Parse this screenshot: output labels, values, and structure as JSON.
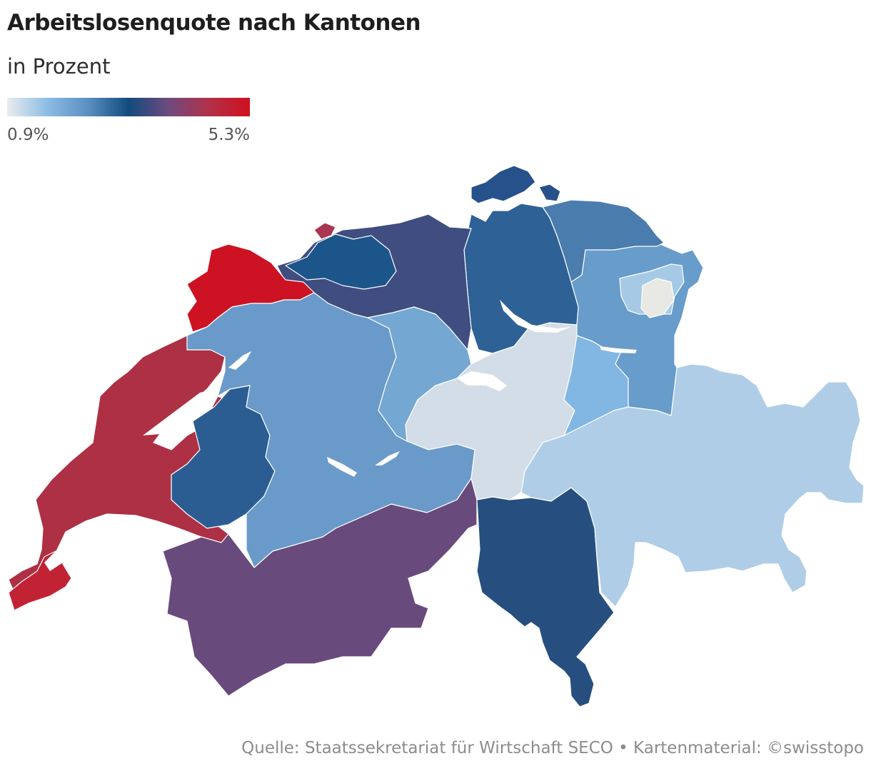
{
  "title": "Arbeitslosenquote nach Kantonen",
  "subtitle": "in Prozent",
  "legend": {
    "min_label": "0.9%",
    "max_label": "5.3%",
    "min_value": 0.9,
    "max_value": 5.3,
    "colors": [
      "#e9ecee",
      "#8cbce4",
      "#5b8fc2",
      "#114b7d",
      "#6f4a7e",
      "#b23048",
      "#d0101f"
    ]
  },
  "source": "Quelle: Staatssekretariat für Wirtschaft SECO • Kartenmaterial: ©swisstopo",
  "map": {
    "regions": [
      {
        "name": "region-jura",
        "color": "#cc1223"
      },
      {
        "name": "region-neuchatel-vaud-geneva-north",
        "color": "#ad3044"
      },
      {
        "name": "region-geneva",
        "color": "#c12335"
      },
      {
        "name": "region-fribourg",
        "color": "#2b5d92"
      },
      {
        "name": "region-bern",
        "color": "#699ac9"
      },
      {
        "name": "region-valais",
        "color": "#694a7c"
      },
      {
        "name": "region-solothurn-aargau",
        "color": "#3f4d80"
      },
      {
        "name": "region-basel",
        "color": "#1c5589"
      },
      {
        "name": "region-basel-city",
        "color": "#a83650"
      },
      {
        "name": "region-schaffhausen",
        "color": "#27518a"
      },
      {
        "name": "region-zurich",
        "color": "#2e6196"
      },
      {
        "name": "region-thurgau",
        "color": "#4a7cad"
      },
      {
        "name": "region-st-gallen",
        "color": "#679ccb"
      },
      {
        "name": "region-appenzell-ar",
        "color": "#a6c9e6"
      },
      {
        "name": "region-appenzell-ir",
        "color": "#e8e8e4"
      },
      {
        "name": "region-lucerne",
        "color": "#74a7d2"
      },
      {
        "name": "region-central",
        "color": "#d3dde7"
      },
      {
        "name": "region-glarus",
        "color": "#82b7e3"
      },
      {
        "name": "region-graubuenden",
        "color": "#afcde6"
      },
      {
        "name": "region-ticino",
        "color": "#264f80"
      }
    ]
  }
}
